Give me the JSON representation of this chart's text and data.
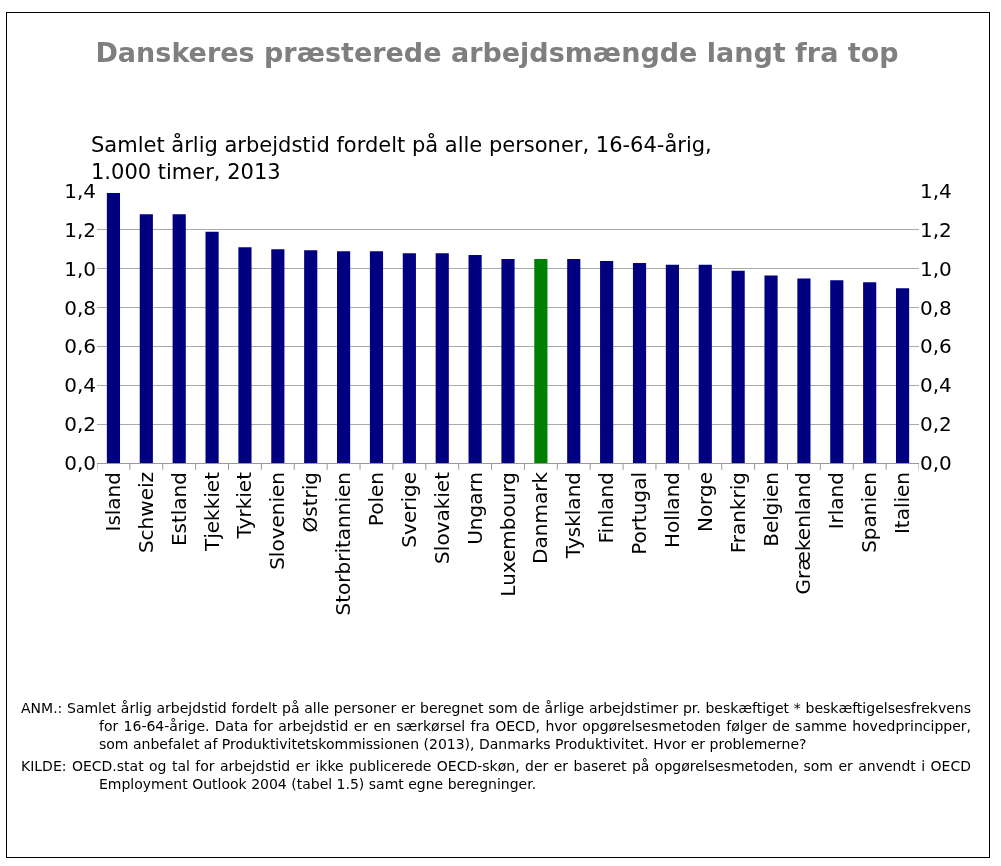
{
  "chart_data": {
    "type": "bar",
    "title": "Danskeres præsterede arbejdsmængde langt fra top",
    "subtitle": "Samlet årlig arbejdstid fordelt på alle personer, 16-64-årig,\n1.000 timer, 2013",
    "categories": [
      "Island",
      "Schweiz",
      "Estland",
      "Tjekkiet",
      "Tyrkiet",
      "Slovenien",
      "Østrig",
      "Storbritannien",
      "Polen",
      "Sverige",
      "Slovakiet",
      "Ungarn",
      "Luxembourg",
      "Danmark",
      "Tyskland",
      "Finland",
      "Portugal",
      "Holland",
      "Norge",
      "Frankrig",
      "Belgien",
      "Grækenland",
      "Irland",
      "Spanien",
      "Italien"
    ],
    "values": [
      1.39,
      1.28,
      1.28,
      1.19,
      1.11,
      1.1,
      1.095,
      1.09,
      1.09,
      1.08,
      1.08,
      1.07,
      1.05,
      1.05,
      1.05,
      1.04,
      1.03,
      1.02,
      1.02,
      0.99,
      0.965,
      0.95,
      0.94,
      0.93,
      0.9
    ],
    "colors": [
      "#000080",
      "#000080",
      "#000080",
      "#000080",
      "#000080",
      "#000080",
      "#000080",
      "#000080",
      "#000080",
      "#000080",
      "#000080",
      "#000080",
      "#000080",
      "#008000",
      "#000080",
      "#000080",
      "#000080",
      "#000080",
      "#000080",
      "#000080",
      "#000080",
      "#000080",
      "#000080",
      "#000080",
      "#000080"
    ],
    "ylim": [
      0,
      1.4
    ],
    "yticks": [
      {
        "value": 0,
        "label": "0,0"
      },
      {
        "value": 0.2,
        "label": "0,2"
      },
      {
        "value": 0.4,
        "label": "0,4"
      },
      {
        "value": 0.6,
        "label": "0,6"
      },
      {
        "value": 0.8,
        "label": "0,8"
      },
      {
        "value": 1,
        "label": "1,0"
      },
      {
        "value": 1.2,
        "label": "1,2"
      },
      {
        "value": 1.4,
        "label": "1,4"
      }
    ],
    "y2lim": [
      0,
      1.4
    ],
    "y2ticks": [
      {
        "value": 0,
        "label": "0,0"
      },
      {
        "value": 0.2,
        "label": "0,2"
      },
      {
        "value": 0.4,
        "label": "0,4"
      },
      {
        "value": 0.6,
        "label": "0,6"
      },
      {
        "value": 0.8,
        "label": "0,8"
      },
      {
        "value": 1,
        "label": "1,0"
      },
      {
        "value": 1.2,
        "label": "1,2"
      },
      {
        "value": 1.4,
        "label": "1,4"
      }
    ],
    "grid": "y",
    "annotations": [
      "ANM.: Samlet årlig arbejdstid fordelt på alle personer er beregnet som de årlige arbejdstimer pr. beskæftiget * beskæftigelsesfrekvens for 16-64-årige. Data for arbejdstid er en særkørsel fra OECD, hvor opgørelsesmetoden følger de samme hovedprincipper, som anbefalet af Produktivitetskommissionen (2013), Danmarks Produktivitet. Hvor er problemerne?",
      "KILDE: OECD.stat og tal for arbejdstid er ikke publicerede OECD-skøn, der er baseret på opgørelsesmetoden, som er anvendt i OECD Employment Outlook 2004 (tabel 1.5) samt egne beregninger."
    ]
  }
}
